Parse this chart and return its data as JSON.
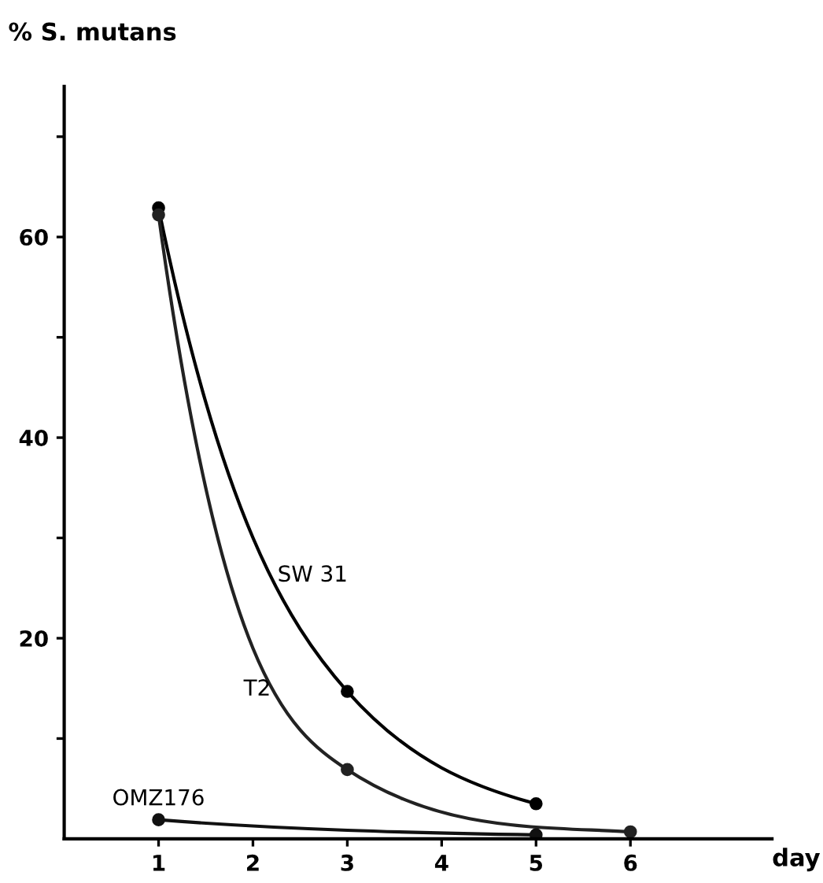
{
  "chart_data": {
    "type": "line",
    "ylabel": "% S. mutans",
    "xlabel": "day",
    "xlim": [
      0,
      7.5
    ],
    "xticks": [
      1,
      2,
      3,
      4,
      5,
      6
    ],
    "ylim": [
      0,
      75
    ],
    "yticks": [
      {
        "value": 10,
        "label": null
      },
      20,
      {
        "value": 30,
        "label": null
      },
      40,
      {
        "value": 50,
        "label": null
      },
      60,
      {
        "value": 70,
        "label": null
      }
    ],
    "marker": "circle",
    "line_style": "solid",
    "grid": false,
    "legend": false,
    "series": [
      {
        "name": "SW 31",
        "color": "#000000",
        "x": [
          1,
          3,
          5
        ],
        "values": [
          62.9,
          14.7,
          3.5
        ]
      },
      {
        "name": "T2",
        "color": "#222222",
        "x": [
          1,
          3,
          6
        ],
        "values": [
          62.2,
          6.9,
          0.7
        ]
      },
      {
        "name": "OMZ176",
        "color": "#111111",
        "x": [
          1,
          5
        ],
        "values": [
          1.9,
          0.4
        ]
      }
    ]
  }
}
